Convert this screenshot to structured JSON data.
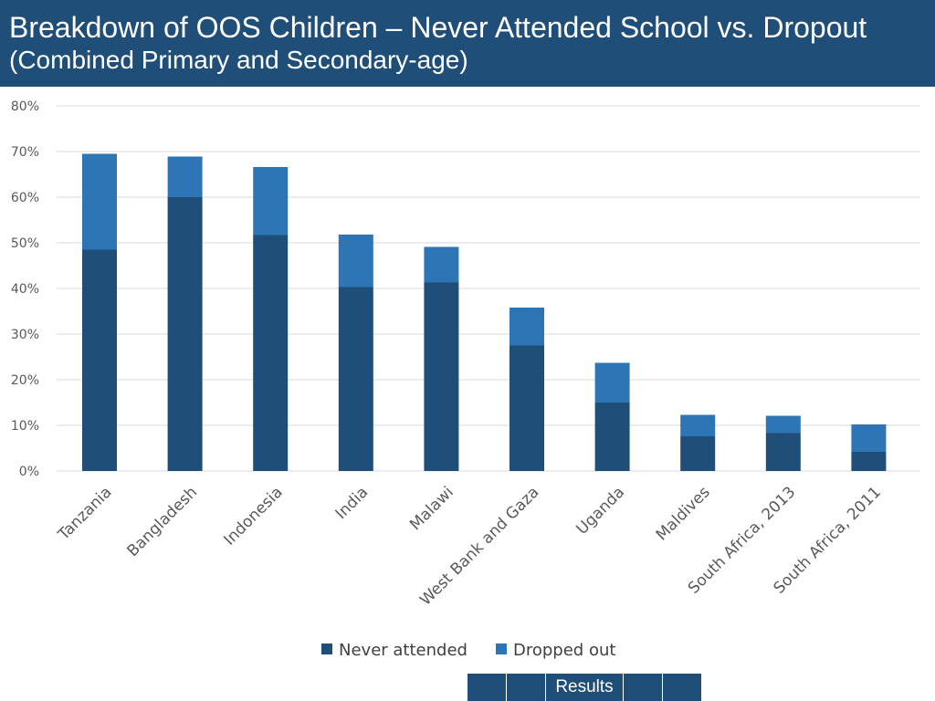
{
  "header": {
    "title": "Breakdown of OOS Children – Never Attended School vs. Dropout",
    "subtitle": "(Combined Primary and Secondary-age)"
  },
  "colors": {
    "header_bg": "#1f4e79",
    "never_attended": "#1f4e79",
    "dropped_out": "#2e75b6",
    "grid": "#d9d9d9",
    "tick_text": "#595959"
  },
  "chart_data": {
    "type": "bar",
    "stacked": true,
    "title": "Breakdown of OOS Children – Never Attended School vs. Dropout",
    "subtitle": "(Combined Primary and Secondary-age)",
    "categories": [
      "Tanzania",
      "Bangladesh",
      "Indonesia",
      "India",
      "Malawi",
      "West Bank and Gaza",
      "Uganda",
      "Maldives",
      "South Africa, 2013",
      "South Africa, 2011"
    ],
    "series": [
      {
        "name": "Never attended",
        "values": [
          48.5,
          60.0,
          51.7,
          40.3,
          41.3,
          27.5,
          15.0,
          7.6,
          8.3,
          4.2
        ]
      },
      {
        "name": "Dropped out",
        "values": [
          21.0,
          8.9,
          14.9,
          11.5,
          7.8,
          8.3,
          8.7,
          4.7,
          3.8,
          6.0
        ]
      }
    ],
    "ylim": [
      0,
      80
    ],
    "yticks": [
      "0%",
      "10%",
      "20%",
      "30%",
      "40%",
      "50%",
      "60%",
      "70%",
      "80%"
    ],
    "xlabel": "",
    "ylabel": "",
    "legend_position": "bottom",
    "grid": true
  },
  "nav": {
    "label": "Results"
  }
}
